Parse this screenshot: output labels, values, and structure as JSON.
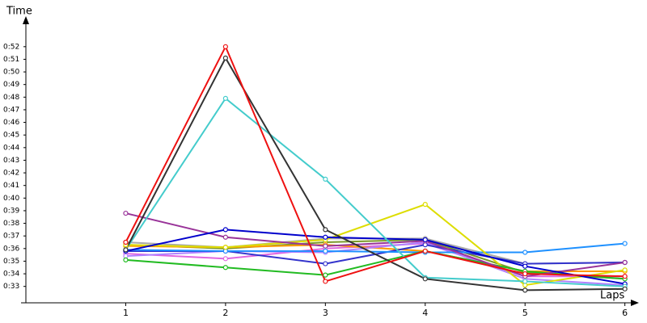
{
  "chart_data": {
    "type": "line",
    "y_label": "Time",
    "x_label": "Laps",
    "x": [
      1,
      2,
      3,
      4,
      5,
      6
    ],
    "xlim": [
      0,
      6.1
    ],
    "xticks": [
      1,
      2,
      3,
      4,
      5,
      6
    ],
    "ylim": [
      31.7,
      54.1
    ],
    "yticks": [
      {
        "value": 33,
        "label": "0:33"
      },
      {
        "value": 34,
        "label": "0:34"
      },
      {
        "value": 35,
        "label": "0:35"
      },
      {
        "value": 36,
        "label": "0:36"
      },
      {
        "value": 37,
        "label": "0:37"
      },
      {
        "value": 38,
        "label": "0:38"
      },
      {
        "value": 39,
        "label": "0:39"
      },
      {
        "value": 40,
        "label": "0:40"
      },
      {
        "value": 41,
        "label": "0:41"
      },
      {
        "value": 42,
        "label": "0:42"
      },
      {
        "value": 43,
        "label": "0:43"
      },
      {
        "value": 44,
        "label": "0:44"
      },
      {
        "value": 45,
        "label": "0:45"
      },
      {
        "value": 46,
        "label": "0:46"
      },
      {
        "value": 47,
        "label": "0:47"
      },
      {
        "value": 48,
        "label": "0:48"
      },
      {
        "value": 49,
        "label": "0:49"
      },
      {
        "value": 50,
        "label": "0:50"
      },
      {
        "value": 51,
        "label": "0:51"
      },
      {
        "value": 52,
        "label": "0:52"
      }
    ],
    "series": [
      {
        "color": "#aaaaaa",
        "values": [
          36.5,
          36.1,
          36.8,
          36.8,
          34.8,
          34.9
        ]
      },
      {
        "color": "#7a9a2a",
        "values": [
          36.3,
          36.0,
          36.5,
          36.7,
          34.1,
          33.6
        ]
      },
      {
        "color": "#e066e0",
        "values": [
          35.6,
          35.2,
          36.0,
          36.4,
          33.8,
          33.8
        ]
      },
      {
        "color": "#ff9900",
        "values": [
          36.2,
          36.1,
          36.3,
          35.8,
          34.2,
          34.2
        ]
      },
      {
        "color": "#b080ff",
        "values": [
          35.4,
          35.8,
          35.7,
          36.5,
          33.6,
          33.1
        ]
      },
      {
        "color": "#3333cc",
        "values": [
          35.8,
          35.8,
          34.8,
          36.3,
          34.8,
          34.9
        ]
      },
      {
        "color": "#1e90ff",
        "values": [
          35.9,
          35.8,
          35.8,
          35.7,
          35.7,
          36.4
        ]
      },
      {
        "color": "#dddd00",
        "values": [
          36.3,
          36.1,
          36.7,
          39.5,
          33.1,
          34.3
        ]
      },
      {
        "color": "#22bb22",
        "values": [
          35.1,
          34.5,
          33.9,
          35.8,
          34.2,
          33.6
        ]
      },
      {
        "color": "#993399",
        "values": [
          38.8,
          36.9,
          36.2,
          36.6,
          33.8,
          34.9
        ]
      },
      {
        "color": "#0000cc",
        "values": [
          35.8,
          37.5,
          36.9,
          36.7,
          34.6,
          33.2
        ]
      },
      {
        "color": "#44cccc",
        "values": [
          35.9,
          47.9,
          41.5,
          33.7,
          33.4,
          33.0
        ]
      },
      {
        "color": "#333333",
        "values": [
          35.9,
          51.1,
          37.5,
          33.6,
          32.7,
          32.8
        ]
      },
      {
        "color": "#ee1111",
        "values": [
          36.5,
          52.0,
          33.4,
          35.8,
          34.0,
          33.8
        ]
      }
    ]
  }
}
